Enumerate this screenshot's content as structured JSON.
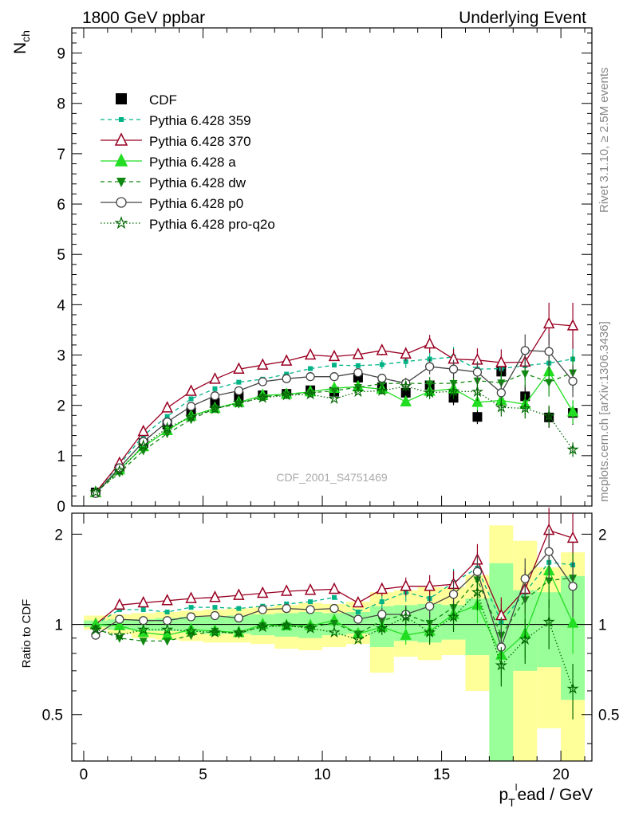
{
  "header": {
    "title_left": "1800 GeV ppbar",
    "title_right": "Underlying Event"
  },
  "side_labels": {
    "rivet": "Rivet 3.1.10, ≥ 2.5M events",
    "mcplots": "mcplots.cern.ch [arXiv:1306.3436]"
  },
  "watermark": "CDF_2001_S4751469",
  "colors": {
    "cdf": "#000000",
    "p359": "#00b386",
    "p370": "#990022",
    "pa": "#22dd22",
    "pdw": "#118811",
    "pp0": "#444444",
    "pq2o": "#006600",
    "band_yellow": "#ffff99",
    "band_green": "#99ff99"
  },
  "chart_data": [
    {
      "type": "line",
      "ylabel": "N_ch",
      "ylim": [
        0,
        9.5
      ],
      "xlim": [
        -0.5,
        21.3
      ],
      "yticks": [
        "0",
        "1",
        "2",
        "3",
        "4",
        "5",
        "6",
        "7",
        "8",
        "9"
      ],
      "legend_position": "top-left",
      "x": [
        0.5,
        1.5,
        2.5,
        3.5,
        4.5,
        5.5,
        6.5,
        7.5,
        8.5,
        9.5,
        10.5,
        11.5,
        12.5,
        13.5,
        14.5,
        15.5,
        16.5,
        17.5,
        18.5,
        19.5,
        20.5
      ],
      "series": [
        {
          "name": "CDF",
          "key": "cdf",
          "marker": "square",
          "values": [
            0.27,
            0.73,
            1.25,
            1.62,
            1.86,
            2.05,
            2.18,
            2.2,
            2.23,
            2.3,
            2.27,
            2.55,
            2.36,
            2.25,
            2.4,
            2.15,
            1.77,
            2.67,
            2.18,
            1.76,
            1.85
          ]
        },
        {
          "name": "Pythia 6.428 359",
          "key": "p359",
          "marker": "smallsquare",
          "dash": "5,4",
          "values": [
            0.27,
            0.82,
            1.4,
            1.78,
            2.13,
            2.33,
            2.46,
            2.52,
            2.62,
            2.73,
            2.8,
            2.79,
            2.81,
            2.87,
            2.92,
            2.96,
            2.72,
            2.73,
            2.79,
            2.84,
            2.92
          ]
        },
        {
          "name": "Pythia 6.428 370",
          "key": "p370",
          "marker": "triangle-open",
          "values": [
            0.27,
            0.85,
            1.48,
            1.95,
            2.28,
            2.52,
            2.72,
            2.8,
            2.88,
            3.0,
            2.97,
            3.01,
            3.09,
            3.02,
            3.22,
            2.92,
            2.9,
            2.85,
            2.86,
            3.62,
            3.58
          ]
        },
        {
          "name": "Pythia 6.428 a",
          "key": "pa",
          "marker": "triangle",
          "values": [
            0.27,
            0.72,
            1.18,
            1.5,
            1.79,
            1.94,
            2.06,
            2.2,
            2.22,
            2.27,
            2.34,
            2.37,
            2.32,
            2.07,
            2.28,
            2.33,
            2.06,
            2.1,
            2.02,
            2.67,
            1.87
          ]
        },
        {
          "name": "Pythia 6.428 dw",
          "key": "pdw",
          "marker": "triangle-down",
          "dash": "5,4",
          "values": [
            0.27,
            0.66,
            1.1,
            1.44,
            1.72,
            1.94,
            2.03,
            2.17,
            2.21,
            2.25,
            2.29,
            2.36,
            2.43,
            2.44,
            2.43,
            2.44,
            2.49,
            2.45,
            2.63,
            2.46,
            2.65
          ]
        },
        {
          "name": "Pythia 6.428 p0",
          "key": "pp0",
          "marker": "circle-open",
          "values": [
            0.25,
            0.76,
            1.28,
            1.67,
            1.98,
            2.19,
            2.29,
            2.47,
            2.53,
            2.57,
            2.57,
            2.65,
            2.54,
            2.44,
            2.77,
            2.72,
            2.66,
            2.25,
            3.09,
            3.07,
            2.48
          ]
        },
        {
          "name": "Pythia 6.428 pro-q2o",
          "key": "pq2o",
          "marker": "star-open",
          "dash": "1.5,2.5",
          "values": [
            0.27,
            0.7,
            1.2,
            1.55,
            1.77,
            1.93,
            2.05,
            2.15,
            2.2,
            2.22,
            2.13,
            2.27,
            2.29,
            2.38,
            2.25,
            2.28,
            2.27,
            1.96,
            1.94,
            1.79,
            1.12
          ]
        }
      ]
    },
    {
      "type": "line",
      "ylabel": "Ratio to CDF",
      "xlabel": "p_T^lead / GeV",
      "yscale": "log",
      "ylim": [
        0.35,
        2.35
      ],
      "yticks": [
        "0.5",
        "1",
        "2"
      ],
      "xticks": [
        "0",
        "5",
        "10",
        "15",
        "20"
      ],
      "x": [
        0.5,
        1.5,
        2.5,
        3.5,
        4.5,
        5.5,
        6.5,
        7.5,
        8.5,
        9.5,
        10.5,
        11.5,
        12.5,
        13.5,
        14.5,
        15.5,
        16.5,
        17.5,
        18.5,
        19.5,
        20.5
      ],
      "band_yellow": [
        [
          0.96,
          1.07
        ],
        [
          0.93,
          1.08
        ],
        [
          0.9,
          1.09
        ],
        [
          0.89,
          1.1
        ],
        [
          0.88,
          1.11
        ],
        [
          0.87,
          1.12
        ],
        [
          0.87,
          1.13
        ],
        [
          0.86,
          1.14
        ],
        [
          0.83,
          1.16
        ],
        [
          0.82,
          1.18
        ],
        [
          0.84,
          1.17
        ],
        [
          0.86,
          1.19
        ],
        [
          0.69,
          1.28
        ],
        [
          0.78,
          1.3
        ],
        [
          0.76,
          1.33
        ],
        [
          0.79,
          1.33
        ],
        [
          0.6,
          1.46
        ],
        [
          0.34,
          2.14
        ],
        [
          0.34,
          1.9
        ],
        [
          0.45,
          1.55
        ],
        [
          0.34,
          1.74
        ]
      ],
      "band_green": [
        [
          0.98,
          1.03
        ],
        [
          0.96,
          1.04
        ],
        [
          0.95,
          1.04
        ],
        [
          0.95,
          1.05
        ],
        [
          0.94,
          1.06
        ],
        [
          0.93,
          1.06
        ],
        [
          0.93,
          1.07
        ],
        [
          0.92,
          1.08
        ],
        [
          0.91,
          1.09
        ],
        [
          0.9,
          1.1
        ],
        [
          0.92,
          1.09
        ],
        [
          0.93,
          1.1
        ],
        [
          0.84,
          1.15
        ],
        [
          0.88,
          1.16
        ],
        [
          0.87,
          1.17
        ],
        [
          0.89,
          1.16
        ],
        [
          0.79,
          1.22
        ],
        [
          0.34,
          1.6
        ],
        [
          0.7,
          1.3
        ],
        [
          0.72,
          1.28
        ],
        [
          0.56,
          1.45
        ]
      ],
      "series": [
        {
          "key": "p359",
          "marker": "smallsquare",
          "dash": "5,4",
          "values": [
            1.0,
            1.12,
            1.12,
            1.1,
            1.14,
            1.14,
            1.13,
            1.15,
            1.17,
            1.19,
            1.23,
            1.1,
            1.19,
            1.28,
            1.22,
            1.38,
            1.54,
            1.02,
            1.28,
            1.61,
            1.58
          ]
        },
        {
          "key": "p370",
          "marker": "triangle-open",
          "values": [
            1.0,
            1.16,
            1.18,
            1.2,
            1.22,
            1.23,
            1.25,
            1.27,
            1.29,
            1.3,
            1.31,
            1.18,
            1.31,
            1.34,
            1.34,
            1.36,
            1.64,
            1.07,
            1.31,
            2.06,
            1.94
          ]
        },
        {
          "key": "pa",
          "marker": "triangle",
          "values": [
            1.0,
            0.99,
            0.94,
            0.92,
            0.96,
            0.95,
            0.94,
            1.0,
            0.99,
            0.99,
            1.03,
            0.93,
            0.98,
            0.92,
            0.95,
            1.08,
            1.16,
            0.79,
            0.93,
            1.51,
            1.01
          ]
        },
        {
          "key": "pdw",
          "marker": "triangle-down",
          "dash": "5,4",
          "values": [
            0.97,
            0.9,
            0.88,
            0.88,
            0.92,
            0.95,
            0.93,
            0.99,
            0.99,
            0.98,
            1.01,
            0.93,
            1.03,
            1.08,
            1.01,
            1.14,
            1.41,
            0.92,
            1.21,
            1.4,
            1.43
          ]
        },
        {
          "key": "pp0",
          "marker": "circle-open",
          "values": [
            0.92,
            1.04,
            1.03,
            1.03,
            1.06,
            1.07,
            1.05,
            1.12,
            1.13,
            1.12,
            1.13,
            1.04,
            1.08,
            1.08,
            1.15,
            1.26,
            1.5,
            0.84,
            1.42,
            1.75,
            1.34
          ]
        },
        {
          "key": "pq2o",
          "marker": "star-open",
          "dash": "1.5,2.5",
          "values": [
            0.96,
            0.92,
            0.96,
            0.96,
            0.95,
            0.94,
            0.94,
            0.98,
            0.99,
            0.97,
            0.94,
            0.89,
            0.97,
            1.06,
            0.94,
            1.06,
            1.28,
            0.73,
            0.89,
            1.02,
            0.61
          ]
        }
      ]
    }
  ]
}
